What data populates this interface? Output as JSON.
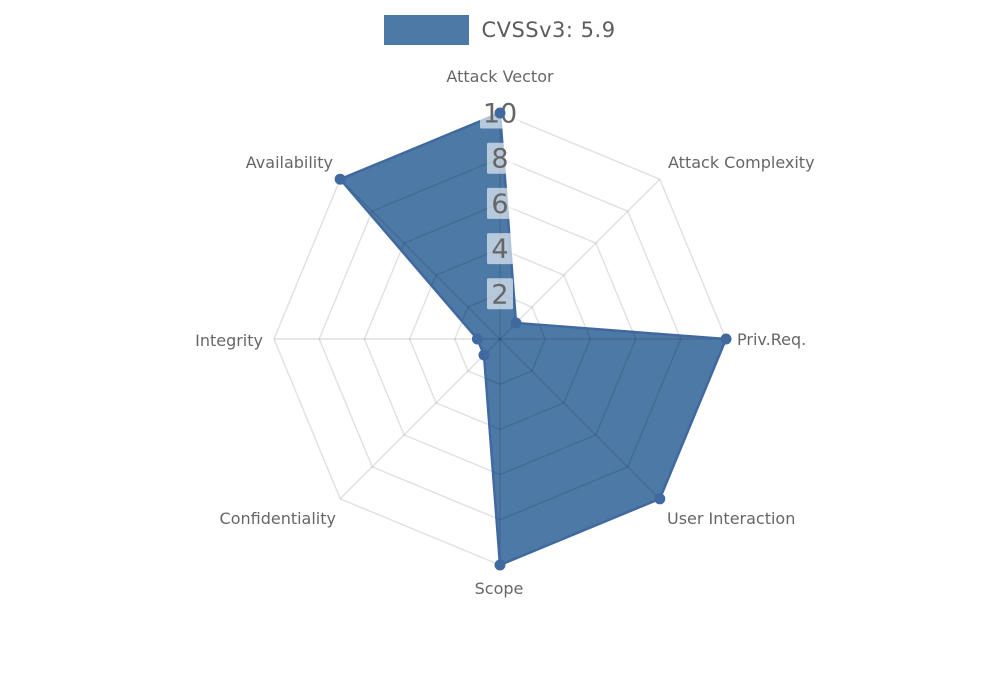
{
  "legend": {
    "title": "CVSSv3: 5.9"
  },
  "chart_data": {
    "type": "radar",
    "title": "CVSSv3: 5.9",
    "categories": [
      "Attack Vector",
      "Attack Complexity",
      "Priv.Req.",
      "User Interaction",
      "Scope",
      "Confidentiality",
      "Integrity",
      "Availability"
    ],
    "series": [
      {
        "name": "CVSSv3: 5.9",
        "values": [
          10,
          1,
          10,
          10,
          10,
          1,
          1,
          10
        ],
        "color": "#4d79a7"
      }
    ],
    "rmax": 10,
    "rticks": [
      2,
      4,
      6,
      8,
      10
    ],
    "grid": true,
    "legend_position": "top-center",
    "colors": {
      "series_fill": "#4d79a7",
      "series_stroke": "#41699f",
      "marker_dot": "#41699f",
      "grid_line": "rgba(0,0,0,0.12)",
      "axis_label": "#666666",
      "tick_text": "#666666",
      "tick_box": "rgba(255,255,255,0.6)",
      "legend_text": "#5c5c5c"
    }
  }
}
